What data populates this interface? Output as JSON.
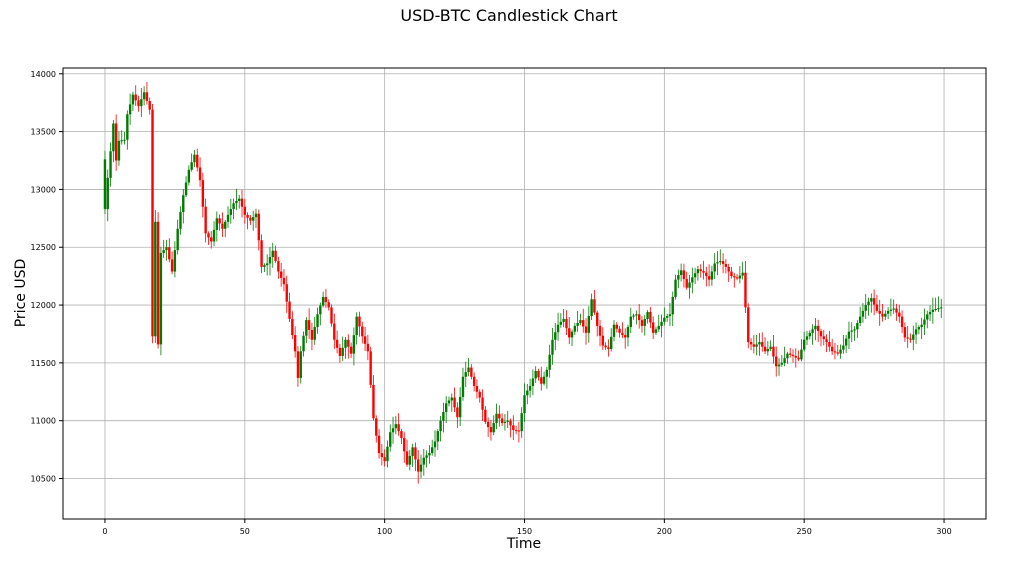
{
  "chart_data": {
    "type": "candlestick",
    "title": "USD-BTC Candlestick Chart",
    "xlabel": "Time",
    "ylabel": "Price USD",
    "xlim": [
      -15,
      315
    ],
    "ylim": [
      10150,
      14050
    ],
    "xticks": [
      0,
      50,
      100,
      150,
      200,
      250,
      300
    ],
    "yticks": [
      10500,
      11000,
      11500,
      12000,
      12500,
      13000,
      13500,
      14000
    ],
    "grid": true,
    "colors": {
      "up": "#007a00",
      "down": "#ff0000"
    },
    "key_points": [
      [
        0,
        12830
      ],
      [
        1,
        13100
      ],
      [
        2,
        13330
      ],
      [
        3,
        13570
      ],
      [
        4,
        13250
      ],
      [
        5,
        13420
      ],
      [
        7,
        13430
      ],
      [
        8,
        13650
      ],
      [
        10,
        13820
      ],
      [
        12,
        13720
      ],
      [
        14,
        13840
      ],
      [
        16,
        13690
      ],
      [
        17,
        11730
      ],
      [
        18,
        12720
      ],
      [
        19,
        11660
      ],
      [
        20,
        12450
      ],
      [
        22,
        12500
      ],
      [
        24,
        12290
      ],
      [
        26,
        12660
      ],
      [
        28,
        12950
      ],
      [
        30,
        13170
      ],
      [
        32,
        13300
      ],
      [
        34,
        13080
      ],
      [
        36,
        12620
      ],
      [
        38,
        12550
      ],
      [
        40,
        12750
      ],
      [
        42,
        12660
      ],
      [
        44,
        12780
      ],
      [
        46,
        12880
      ],
      [
        48,
        12920
      ],
      [
        50,
        12780
      ],
      [
        52,
        12730
      ],
      [
        54,
        12790
      ],
      [
        56,
        12330
      ],
      [
        58,
        12360
      ],
      [
        60,
        12470
      ],
      [
        62,
        12290
      ],
      [
        64,
        12180
      ],
      [
        66,
        11880
      ],
      [
        68,
        11600
      ],
      [
        69,
        11370
      ],
      [
        70,
        11600
      ],
      [
        72,
        11870
      ],
      [
        74,
        11700
      ],
      [
        76,
        11920
      ],
      [
        78,
        12070
      ],
      [
        80,
        11980
      ],
      [
        82,
        11700
      ],
      [
        84,
        11560
      ],
      [
        86,
        11700
      ],
      [
        88,
        11580
      ],
      [
        90,
        11900
      ],
      [
        92,
        11730
      ],
      [
        94,
        11600
      ],
      [
        96,
        11020
      ],
      [
        98,
        10720
      ],
      [
        100,
        10650
      ],
      [
        102,
        10900
      ],
      [
        104,
        10970
      ],
      [
        106,
        10850
      ],
      [
        108,
        10620
      ],
      [
        110,
        10770
      ],
      [
        112,
        10560
      ],
      [
        114,
        10680
      ],
      [
        116,
        10720
      ],
      [
        118,
        10820
      ],
      [
        120,
        11000
      ],
      [
        122,
        11150
      ],
      [
        124,
        11200
      ],
      [
        126,
        11030
      ],
      [
        128,
        11380
      ],
      [
        130,
        11460
      ],
      [
        132,
        11300
      ],
      [
        134,
        11200
      ],
      [
        136,
        10990
      ],
      [
        138,
        10900
      ],
      [
        140,
        11060
      ],
      [
        142,
        10980
      ],
      [
        144,
        11000
      ],
      [
        146,
        10920
      ],
      [
        148,
        10910
      ],
      [
        150,
        11220
      ],
      [
        152,
        11300
      ],
      [
        154,
        11430
      ],
      [
        156,
        11320
      ],
      [
        158,
        11440
      ],
      [
        160,
        11700
      ],
      [
        162,
        11830
      ],
      [
        164,
        11880
      ],
      [
        166,
        11720
      ],
      [
        168,
        11820
      ],
      [
        170,
        11870
      ],
      [
        172,
        11760
      ],
      [
        174,
        12050
      ],
      [
        176,
        11820
      ],
      [
        178,
        11650
      ],
      [
        180,
        11620
      ],
      [
        182,
        11830
      ],
      [
        184,
        11760
      ],
      [
        186,
        11720
      ],
      [
        188,
        11900
      ],
      [
        190,
        11920
      ],
      [
        192,
        11820
      ],
      [
        194,
        11940
      ],
      [
        196,
        11760
      ],
      [
        198,
        11820
      ],
      [
        200,
        11890
      ],
      [
        202,
        11920
      ],
      [
        204,
        12220
      ],
      [
        206,
        12300
      ],
      [
        208,
        12150
      ],
      [
        210,
        12240
      ],
      [
        212,
        12310
      ],
      [
        214,
        12280
      ],
      [
        216,
        12220
      ],
      [
        218,
        12360
      ],
      [
        220,
        12380
      ],
      [
        222,
        12330
      ],
      [
        224,
        12250
      ],
      [
        226,
        12230
      ],
      [
        228,
        12280
      ],
      [
        230,
        11680
      ],
      [
        232,
        11640
      ],
      [
        234,
        11680
      ],
      [
        236,
        11600
      ],
      [
        238,
        11640
      ],
      [
        240,
        11470
      ],
      [
        242,
        11500
      ],
      [
        244,
        11580
      ],
      [
        246,
        11560
      ],
      [
        248,
        11530
      ],
      [
        250,
        11700
      ],
      [
        252,
        11760
      ],
      [
        254,
        11820
      ],
      [
        256,
        11730
      ],
      [
        258,
        11680
      ],
      [
        260,
        11600
      ],
      [
        262,
        11580
      ],
      [
        264,
        11650
      ],
      [
        266,
        11770
      ],
      [
        268,
        11790
      ],
      [
        270,
        11900
      ],
      [
        272,
        12000
      ],
      [
        274,
        12060
      ],
      [
        276,
        11950
      ],
      [
        278,
        11900
      ],
      [
        280,
        11950
      ],
      [
        282,
        11970
      ],
      [
        284,
        11900
      ],
      [
        286,
        11720
      ],
      [
        288,
        11700
      ],
      [
        290,
        11790
      ],
      [
        292,
        11830
      ],
      [
        294,
        11920
      ],
      [
        296,
        11960
      ],
      [
        299,
        11980
      ]
    ]
  }
}
